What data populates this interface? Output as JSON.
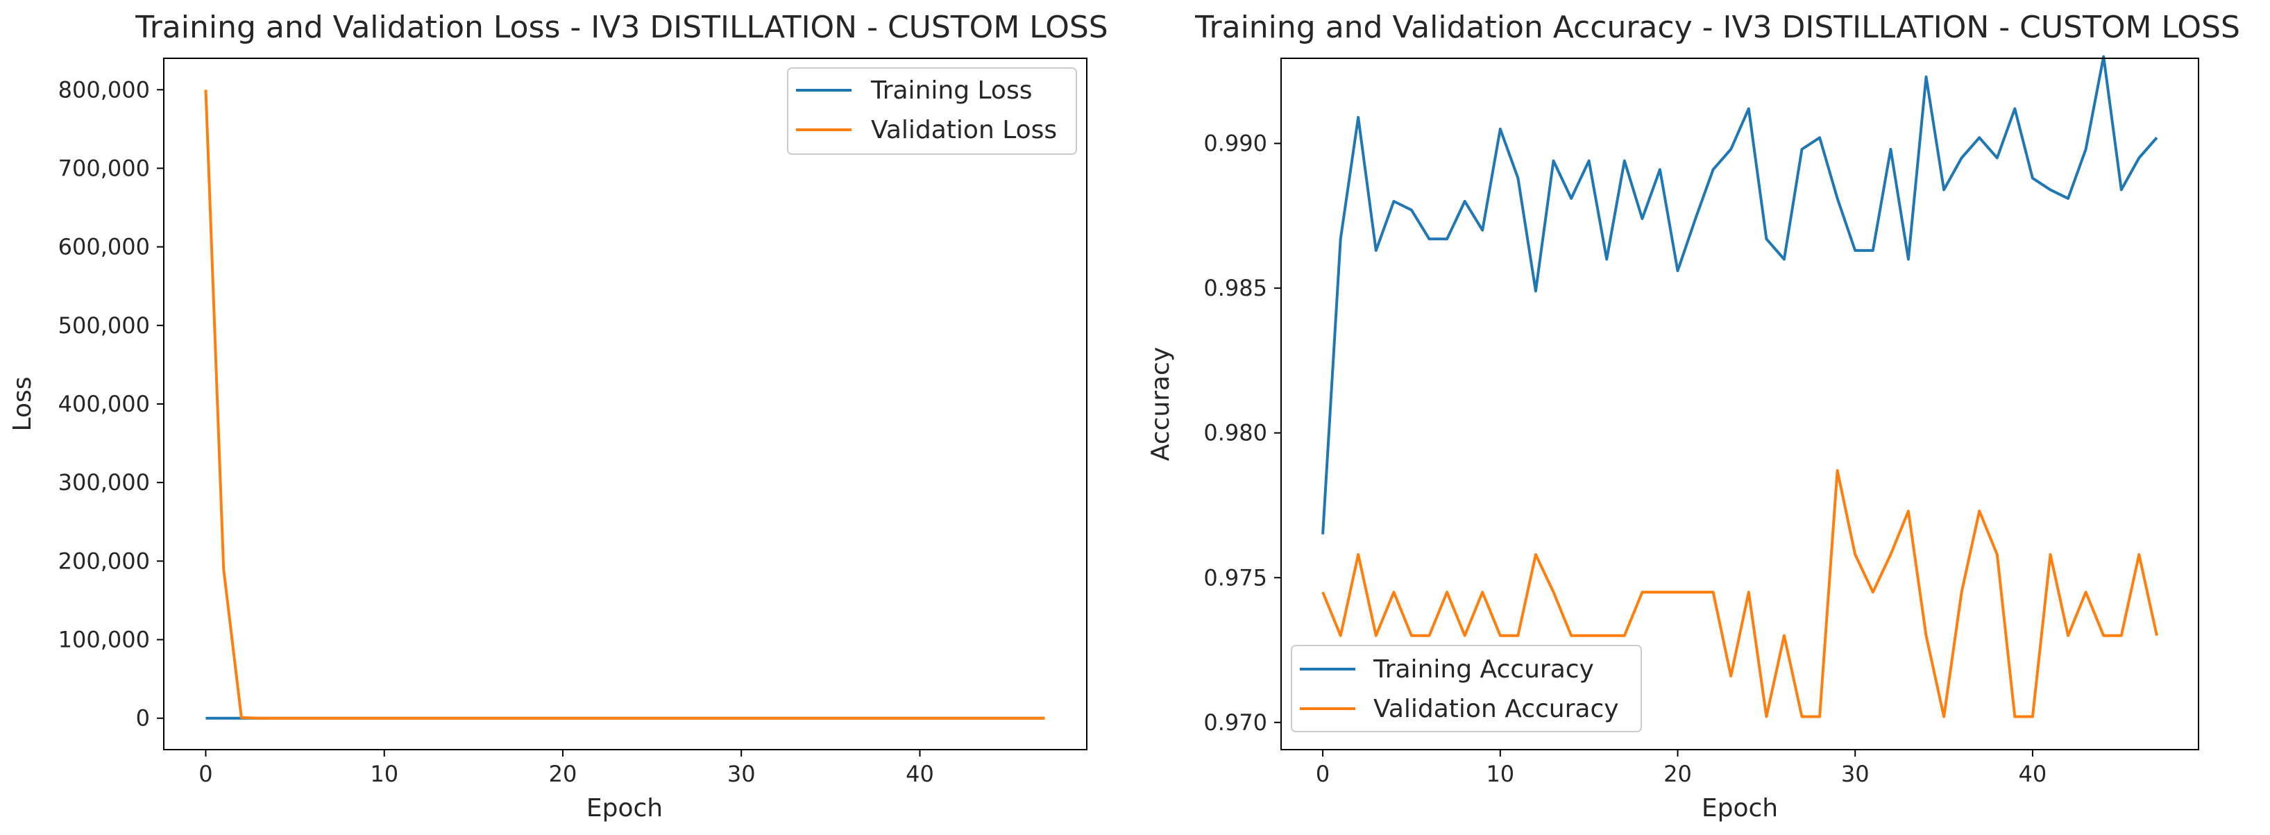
{
  "chart_data": [
    {
      "type": "line",
      "title": "Training and Validation Loss - IV3 DISTILLATION - CUSTOM LOSS",
      "xlabel": "Epoch",
      "ylabel": "Loss",
      "xlim": [
        -2.35,
        49.35
      ],
      "ylim": [
        -40000,
        840000
      ],
      "xticks": [
        0,
        10,
        20,
        30,
        40
      ],
      "xtick_labels": [
        "0",
        "10",
        "20",
        "30",
        "40"
      ],
      "yticks": [
        0,
        100000,
        200000,
        300000,
        400000,
        500000,
        600000,
        700000,
        800000
      ],
      "ytick_labels": [
        "0",
        "100,000",
        "200,000",
        "300,000",
        "400,000",
        "500,000",
        "600,000",
        "700,000",
        "800,000"
      ],
      "grid": false,
      "legend_position": "top-right",
      "x": [
        0,
        1,
        2,
        3,
        4,
        5,
        6,
        7,
        8,
        9,
        10,
        11,
        12,
        13,
        14,
        15,
        16,
        17,
        18,
        19,
        20,
        21,
        22,
        23,
        24,
        25,
        26,
        27,
        28,
        29,
        30,
        31,
        32,
        33,
        34,
        35,
        36,
        37,
        38,
        39,
        40,
        41,
        42,
        43,
        44,
        45,
        46,
        47
      ],
      "series": [
        {
          "name": "Training Loss",
          "color": "#1f77b4",
          "values": [
            0.9,
            0.15,
            0.12,
            0.11,
            0.1,
            0.1,
            0.1,
            0.1,
            0.1,
            0.1,
            0.1,
            0.1,
            0.1,
            0.1,
            0.1,
            0.1,
            0.1,
            0.1,
            0.1,
            0.1,
            0.1,
            0.1,
            0.1,
            0.1,
            0.1,
            0.1,
            0.1,
            0.1,
            0.1,
            0.1,
            0.1,
            0.1,
            0.1,
            0.1,
            0.1,
            0.1,
            0.1,
            0.1,
            0.1,
            0.1,
            0.1,
            0.1,
            0.1,
            0.1,
            0.1,
            0.1,
            0.1,
            0.1
          ]
        },
        {
          "name": "Validation Loss",
          "color": "#ff7f0e",
          "values": [
            800000,
            190000,
            800,
            5,
            3,
            3,
            3,
            3,
            3,
            3,
            3,
            3,
            3,
            3,
            3,
            3,
            3,
            3,
            3,
            3,
            3,
            3,
            3,
            3,
            3,
            3,
            3,
            3,
            3,
            3,
            3,
            3,
            3,
            3,
            3,
            3,
            3,
            3,
            3,
            3,
            3,
            3,
            3,
            3,
            3,
            3,
            3,
            3
          ]
        }
      ]
    },
    {
      "type": "line",
      "title": "Training and Validation Accuracy - IV3 DISTILLATION - CUSTOM LOSS",
      "xlabel": "Epoch",
      "ylabel": "Accuracy",
      "xlim": [
        -2.35,
        49.35
      ],
      "ylim": [
        0.96906,
        0.99294
      ],
      "xticks": [
        0,
        10,
        20,
        30,
        40
      ],
      "xtick_labels": [
        "0",
        "10",
        "20",
        "30",
        "40"
      ],
      "yticks": [
        0.97,
        0.975,
        0.98,
        0.985,
        0.99
      ],
      "ytick_labels": [
        "0.970",
        "0.975",
        "0.980",
        "0.985",
        "0.990"
      ],
      "grid": false,
      "legend_position": "bottom-left",
      "x": [
        0,
        1,
        2,
        3,
        4,
        5,
        6,
        7,
        8,
        9,
        10,
        11,
        12,
        13,
        14,
        15,
        16,
        17,
        18,
        19,
        20,
        21,
        22,
        23,
        24,
        25,
        26,
        27,
        28,
        29,
        30,
        31,
        32,
        33,
        34,
        35,
        36,
        37,
        38,
        39,
        40,
        41,
        42,
        43,
        44,
        45,
        46,
        47
      ],
      "series": [
        {
          "name": "Training Accuracy",
          "color": "#1f77b4",
          "values": [
            0.9765,
            0.9867,
            0.9909,
            0.9863,
            0.988,
            0.9877,
            0.9867,
            0.9867,
            0.988,
            0.987,
            0.9905,
            0.9888,
            0.9849,
            0.9894,
            0.9881,
            0.9894,
            0.986,
            0.9894,
            0.9874,
            0.9891,
            0.9856,
            0.9874,
            0.9891,
            0.9898,
            0.9912,
            0.9867,
            0.986,
            0.9898,
            0.9902,
            0.9881,
            0.9863,
            0.9863,
            0.9898,
            0.986,
            0.9923,
            0.9884,
            0.9895,
            0.9902,
            0.9895,
            0.9912,
            0.9888,
            0.9884,
            0.9881,
            0.9898,
            0.993,
            0.9884,
            0.9895,
            0.9902
          ]
        },
        {
          "name": "Validation Accuracy",
          "color": "#ff7f0e",
          "values": [
            0.9745,
            0.973,
            0.9758,
            0.973,
            0.9745,
            0.973,
            0.973,
            0.9745,
            0.973,
            0.9745,
            0.973,
            0.973,
            0.9758,
            0.9745,
            0.973,
            0.973,
            0.973,
            0.973,
            0.9745,
            0.9745,
            0.9745,
            0.9745,
            0.9745,
            0.9716,
            0.9745,
            0.9702,
            0.973,
            0.9702,
            0.9702,
            0.9787,
            0.9758,
            0.9745,
            0.9758,
            0.9773,
            0.973,
            0.9702,
            0.9745,
            0.9773,
            0.9758,
            0.9702,
            0.9702,
            0.9758,
            0.973,
            0.9745,
            0.973,
            0.973,
            0.9758,
            0.973
          ]
        }
      ]
    }
  ]
}
